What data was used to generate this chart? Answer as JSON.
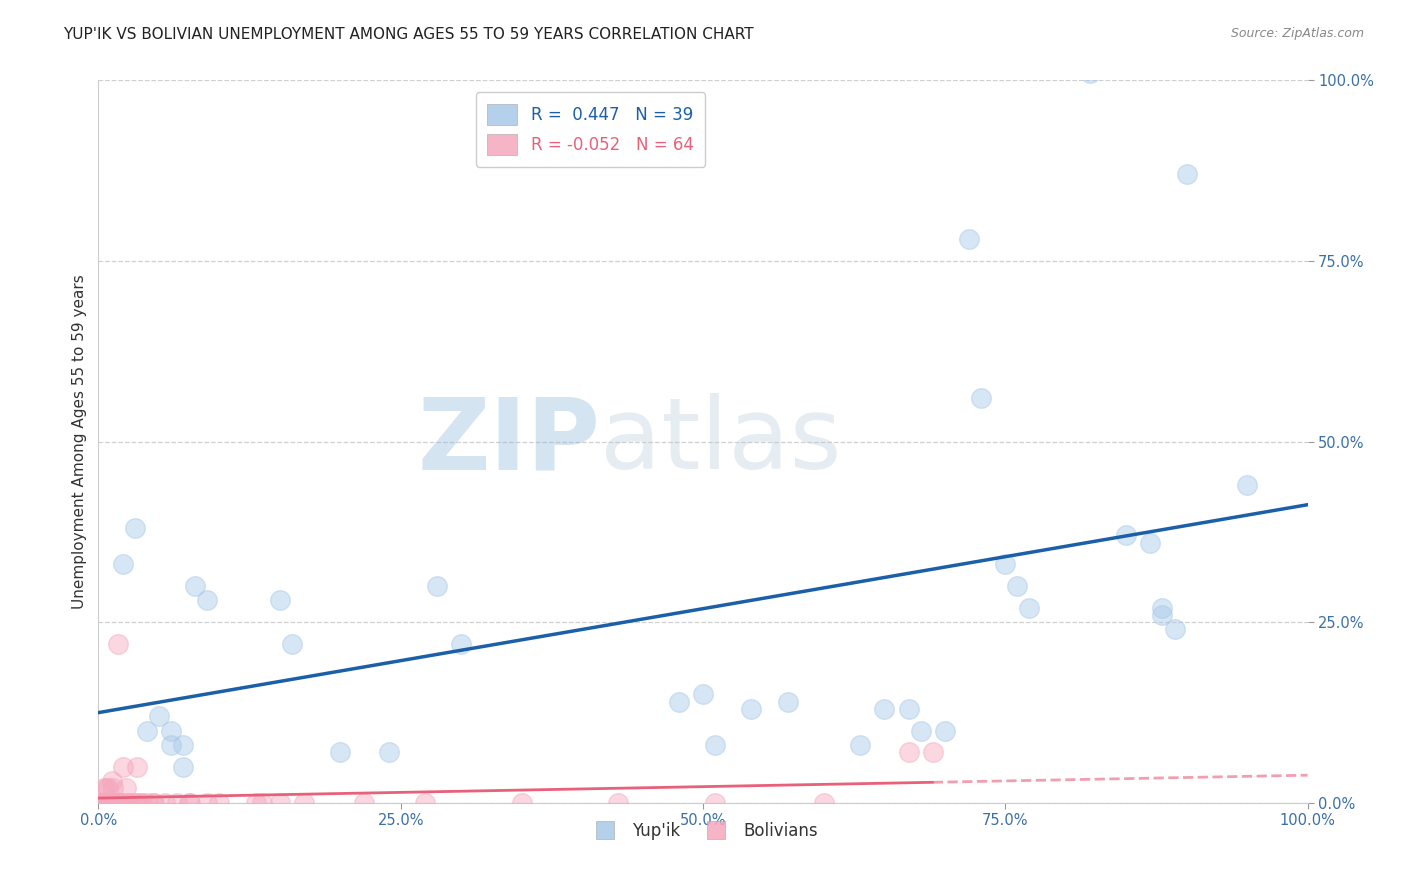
{
  "title": "YUP'IK VS BOLIVIAN UNEMPLOYMENT AMONG AGES 55 TO 59 YEARS CORRELATION CHART",
  "source": "Source: ZipAtlas.com",
  "ylabel": "Unemployment Among Ages 55 to 59 years",
  "xlim": [
    0,
    1.0
  ],
  "ylim": [
    0,
    1.0
  ],
  "xticks": [
    0.0,
    0.25,
    0.5,
    0.75,
    1.0
  ],
  "yticks": [
    0.0,
    0.25,
    0.5,
    0.75,
    1.0
  ],
  "xticklabels": [
    "0.0%",
    "25.0%",
    "50.0%",
    "75.0%",
    "100.0%"
  ],
  "yticklabels": [
    "0.0%",
    "25.0%",
    "50.0%",
    "75.0%",
    "100.0%"
  ],
  "watermark_zip": "ZIP",
  "watermark_atlas": "atlas",
  "legend_r_yupik": "R =  0.447",
  "legend_n_yupik": "N = 39",
  "legend_r_bolivian": "R = -0.052",
  "legend_n_bolivian": "N = 64",
  "yupik_color": "#a8c8e8",
  "bolivian_color": "#f4a8be",
  "yupik_line_color": "#1a5fa8",
  "bolivian_line_color": "#e8607a",
  "yupik_scatter": [
    [
      0.02,
      0.33
    ],
    [
      0.03,
      0.38
    ],
    [
      0.04,
      0.1
    ],
    [
      0.05,
      0.12
    ],
    [
      0.06,
      0.1
    ],
    [
      0.06,
      0.08
    ],
    [
      0.07,
      0.08
    ],
    [
      0.07,
      0.05
    ],
    [
      0.08,
      0.3
    ],
    [
      0.09,
      0.28
    ],
    [
      0.15,
      0.28
    ],
    [
      0.16,
      0.22
    ],
    [
      0.2,
      0.07
    ],
    [
      0.24,
      0.07
    ],
    [
      0.28,
      0.3
    ],
    [
      0.3,
      0.22
    ],
    [
      0.48,
      0.14
    ],
    [
      0.5,
      0.15
    ],
    [
      0.51,
      0.08
    ],
    [
      0.54,
      0.13
    ],
    [
      0.57,
      0.14
    ],
    [
      0.63,
      0.08
    ],
    [
      0.65,
      0.13
    ],
    [
      0.67,
      0.13
    ],
    [
      0.68,
      0.1
    ],
    [
      0.7,
      0.1
    ],
    [
      0.72,
      0.78
    ],
    [
      0.73,
      0.56
    ],
    [
      0.75,
      0.33
    ],
    [
      0.76,
      0.3
    ],
    [
      0.77,
      0.27
    ],
    [
      0.82,
      1.01
    ],
    [
      0.85,
      0.37
    ],
    [
      0.87,
      0.36
    ],
    [
      0.88,
      0.27
    ],
    [
      0.88,
      0.26
    ],
    [
      0.89,
      0.24
    ],
    [
      0.9,
      0.87
    ],
    [
      0.95,
      0.44
    ]
  ],
  "bolivian_scatter": [
    [
      0.003,
      0.0
    ],
    [
      0.004,
      0.0
    ],
    [
      0.004,
      0.0
    ],
    [
      0.005,
      0.0
    ],
    [
      0.005,
      0.0
    ],
    [
      0.005,
      0.0
    ],
    [
      0.005,
      0.0
    ],
    [
      0.005,
      0.0
    ],
    [
      0.005,
      0.0
    ],
    [
      0.005,
      0.0
    ],
    [
      0.005,
      0.02
    ],
    [
      0.006,
      0.02
    ],
    [
      0.006,
      0.0
    ],
    [
      0.006,
      0.0
    ],
    [
      0.007,
      0.0
    ],
    [
      0.007,
      0.0
    ],
    [
      0.007,
      0.0
    ],
    [
      0.008,
      0.0
    ],
    [
      0.008,
      0.02
    ],
    [
      0.009,
      0.0
    ],
    [
      0.01,
      0.0
    ],
    [
      0.01,
      0.0
    ],
    [
      0.011,
      0.0
    ],
    [
      0.011,
      0.03
    ],
    [
      0.012,
      0.02
    ],
    [
      0.013,
      0.0
    ],
    [
      0.013,
      0.0
    ],
    [
      0.014,
      0.0
    ],
    [
      0.015,
      0.0
    ],
    [
      0.016,
      0.22
    ],
    [
      0.016,
      0.0
    ],
    [
      0.018,
      0.0
    ],
    [
      0.019,
      0.0
    ],
    [
      0.02,
      0.05
    ],
    [
      0.022,
      0.0
    ],
    [
      0.023,
      0.02
    ],
    [
      0.025,
      0.0
    ],
    [
      0.026,
      0.0
    ],
    [
      0.03,
      0.0
    ],
    [
      0.031,
      0.0
    ],
    [
      0.032,
      0.05
    ],
    [
      0.035,
      0.0
    ],
    [
      0.036,
      0.0
    ],
    [
      0.04,
      0.0
    ],
    [
      0.045,
      0.0
    ],
    [
      0.046,
      0.0
    ],
    [
      0.055,
      0.0
    ],
    [
      0.065,
      0.0
    ],
    [
      0.075,
      0.0
    ],
    [
      0.076,
      0.0
    ],
    [
      0.09,
      0.0
    ],
    [
      0.1,
      0.0
    ],
    [
      0.13,
      0.0
    ],
    [
      0.135,
      0.0
    ],
    [
      0.15,
      0.0
    ],
    [
      0.17,
      0.0
    ],
    [
      0.22,
      0.0
    ],
    [
      0.27,
      0.0
    ],
    [
      0.35,
      0.0
    ],
    [
      0.43,
      0.0
    ],
    [
      0.51,
      0.0
    ],
    [
      0.6,
      0.0
    ],
    [
      0.67,
      0.07
    ],
    [
      0.69,
      0.07
    ]
  ],
  "background_color": "#ffffff",
  "grid_color": "#d0d0d0",
  "title_fontsize": 11,
  "axis_label_fontsize": 11,
  "tick_fontsize": 10.5,
  "marker_size": 200,
  "marker_alpha": 0.45
}
